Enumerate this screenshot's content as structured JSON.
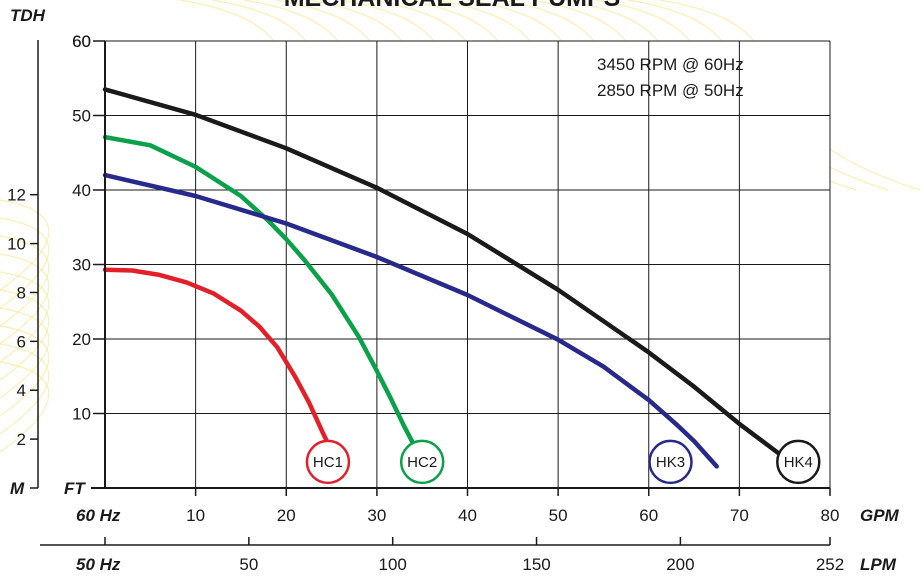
{
  "chart_data": {
    "type": "line",
    "title": "MECHANICAL SEAL PUMPS",
    "annotation_lines": [
      "3450 RPM @ 60Hz",
      "2850 RPM @ 50Hz"
    ],
    "left_axis_label": "TDH",
    "left_axis_unit": "M",
    "left_axis_ticks": [
      "2",
      "4",
      "6",
      "8",
      "10",
      "12"
    ],
    "y_axis_unit": "FT",
    "y_ticks": [
      "10",
      "20",
      "30",
      "40",
      "50",
      "60"
    ],
    "ylim": [
      0,
      60
    ],
    "x_axis_row_label": "60 Hz",
    "x_axis_unit": "GPM",
    "x_ticks": [
      "10",
      "20",
      "30",
      "40",
      "50",
      "60",
      "70",
      "80"
    ],
    "xlim": [
      0,
      80
    ],
    "lpm_axis_row_label": "50 Hz",
    "lpm_axis_unit": "LPM",
    "lpm_ticks": [
      "50",
      "100",
      "150",
      "200",
      "252"
    ],
    "grid": true,
    "series": [
      {
        "name": "HC1",
        "color": "#e3202a",
        "x": [
          0,
          3,
          6,
          9,
          12,
          15,
          17,
          19,
          21,
          22.5,
          24,
          24.6
        ],
        "y": [
          29.3,
          29.2,
          28.6,
          27.6,
          26.1,
          23.8,
          21.7,
          18.9,
          14.9,
          11.5,
          7.5,
          6.0
        ]
      },
      {
        "name": "HC2",
        "color": "#0aa14a",
        "x": [
          0,
          5,
          10,
          15,
          18,
          20,
          22,
          25,
          28,
          30,
          31.5,
          33,
          34
        ],
        "y": [
          47.1,
          46.0,
          43.1,
          39.2,
          35.9,
          33.4,
          30.6,
          26.0,
          20.3,
          15.7,
          12.1,
          8.3,
          6.0
        ]
      },
      {
        "name": "HK3",
        "color": "#27298b",
        "x": [
          0,
          10,
          20,
          30,
          40,
          50,
          55,
          60,
          63,
          65,
          67.5
        ],
        "y": [
          42.0,
          39.2,
          35.5,
          31.0,
          25.9,
          19.9,
          16.3,
          11.8,
          8.6,
          6.3,
          2.9
        ]
      },
      {
        "name": "HK4",
        "color": "#1a1a1a",
        "x": [
          0,
          10,
          20,
          30,
          40,
          50,
          60,
          65,
          70,
          74.5
        ],
        "y": [
          53.5,
          50.1,
          45.6,
          40.3,
          34.1,
          26.6,
          18.2,
          13.6,
          8.6,
          4.5
        ]
      }
    ],
    "badges": [
      {
        "label": "HC1",
        "x": 24.6,
        "y": 3.5,
        "color": "#e3202a"
      },
      {
        "label": "HC2",
        "x": 35.0,
        "y": 3.5,
        "color": "#0aa14a"
      },
      {
        "label": "HK3",
        "x": 62.4,
        "y": 3.5,
        "color": "#27298b"
      },
      {
        "label": "HK4",
        "x": 76.5,
        "y": 3.5,
        "color": "#1a1a1a"
      }
    ],
    "colors": {
      "background_wave": "#f7e27a",
      "axis": "#1a1a1a",
      "grid": "#1a1a1a"
    }
  }
}
